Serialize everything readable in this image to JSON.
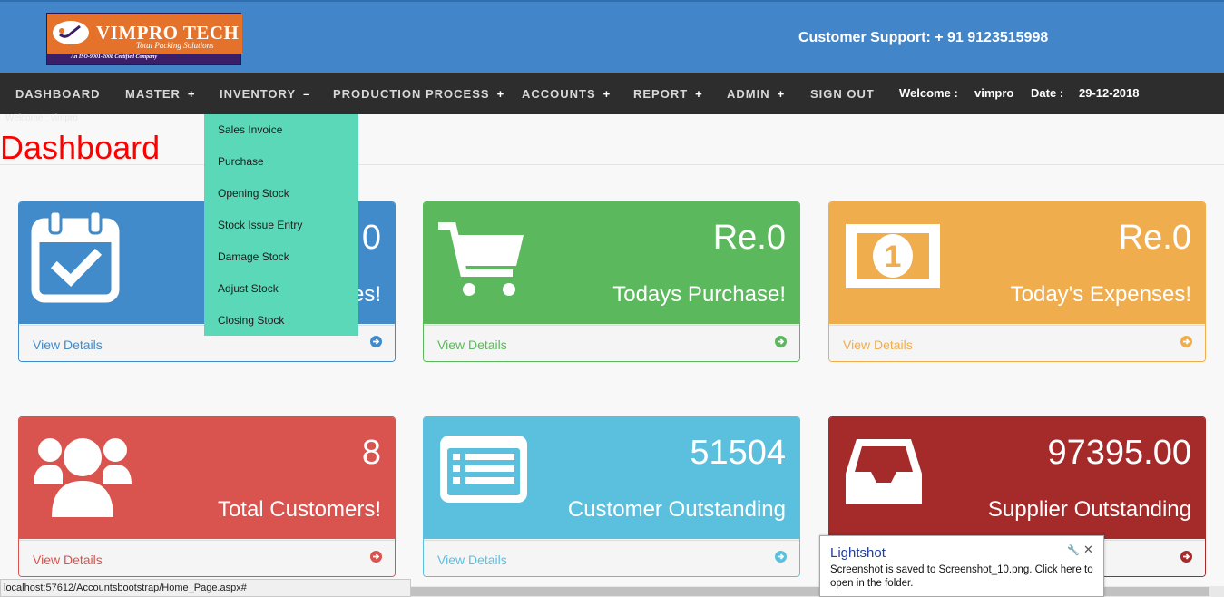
{
  "header": {
    "logo": {
      "brand": "VIMPRO TECH",
      "tagline": "Total Packing Solutions",
      "certification": "An ISO-9001-2008 Certified Company"
    },
    "support_text": "Customer Support: + 91 9123515998"
  },
  "nav": {
    "items": [
      {
        "label": "DASHBOARD",
        "toggle": ""
      },
      {
        "label": "MASTER",
        "toggle": "+"
      },
      {
        "label": "INVENTORY",
        "toggle": "–"
      },
      {
        "label": "PRODUCTION PROCESS",
        "toggle": "+"
      },
      {
        "label": "ACCOUNTS",
        "toggle": "+"
      },
      {
        "label": "REPORT",
        "toggle": "+"
      },
      {
        "label": "ADMIN",
        "toggle": "+"
      },
      {
        "label": "SIGN OUT",
        "toggle": ""
      }
    ],
    "welcome_label": "Welcome :",
    "username": "vimpro",
    "date_label": "Date :",
    "date": "29-12-2018"
  },
  "inventory_menu": [
    "Sales Invoice",
    "Purchase",
    "Opening Stock",
    "Stock Issue Entry",
    "Damage Stock",
    "Adjust Stock",
    "Closing Stock"
  ],
  "page": {
    "faint_welcome": "Welcome :   vimpro",
    "title": "Dashboard"
  },
  "panels": [
    {
      "value": "0",
      "label": "es!",
      "link": "View Details",
      "icon": "calendar-check-icon",
      "color": "#428bca"
    },
    {
      "value": "Re.0",
      "label": "Todays Purchase!",
      "link": "View Details",
      "icon": "shopping-cart-icon",
      "color": "#5cb85c"
    },
    {
      "value": "Re.0",
      "label": "Today's Expenses!",
      "link": "View Details",
      "icon": "money-bill-icon",
      "color": "#f0ad4e"
    },
    {
      "value": "8",
      "label": "Total Customers!",
      "link": "View Details",
      "icon": "users-icon",
      "color": "#d9534f"
    },
    {
      "value": "51504",
      "label": "Customer Outstanding",
      "link": "View Details",
      "icon": "list-alt-icon",
      "color": "#5bc0de"
    },
    {
      "value": "97395.00",
      "label": "Supplier Outstanding",
      "link": "",
      "icon": "inbox-icon",
      "color": "#a52a2a"
    }
  ],
  "statusbar": {
    "url": "localhost:57612/Accountsbootstrap/Home_Page.aspx#"
  },
  "toast": {
    "title": "Lightshot",
    "message": "Screenshot is saved to Screenshot_10.png. Click here to open in the folder."
  }
}
